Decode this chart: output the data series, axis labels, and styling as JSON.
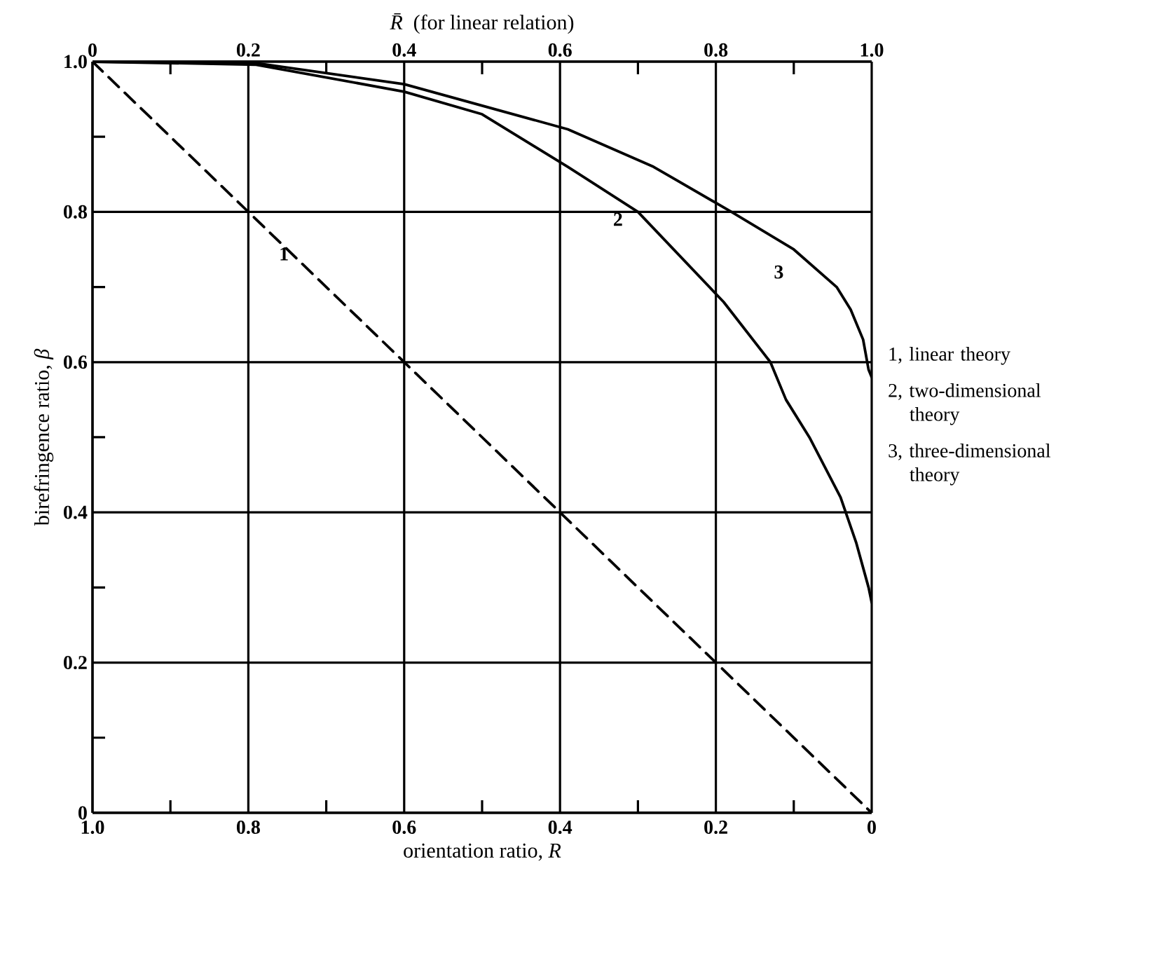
{
  "chart_data": {
    "type": "line",
    "xlabel": "orientation ratio, *R*",
    "ylabel": "birefringence ratio, *β*",
    "x2label": "*R̄* (for linear relation)",
    "xlim": [
      1,
      0
    ],
    "xticks": [
      {
        "value": 1,
        "label": "1.0"
      },
      {
        "value": 0.9,
        "label": null
      },
      0.8,
      {
        "value": 0.7,
        "label": null
      },
      0.6,
      {
        "value": 0.5,
        "label": null
      },
      0.4,
      {
        "value": 0.3,
        "label": null
      },
      0.2,
      {
        "value": 0.1,
        "label": null
      },
      0
    ],
    "x2lim": [
      0,
      1
    ],
    "x2ticks": [
      0,
      {
        "value": 0.1,
        "label": null
      },
      0.2,
      {
        "value": 0.3,
        "label": null
      },
      0.4,
      {
        "value": 0.5,
        "label": null
      },
      0.6,
      {
        "value": 0.7,
        "label": null
      },
      0.8,
      {
        "value": 0.9,
        "label": null
      },
      {
        "value": 1,
        "label": "1.0"
      }
    ],
    "ylim": [
      0,
      1
    ],
    "yticks": [
      0,
      {
        "value": 0.1,
        "label": null
      },
      0.2,
      {
        "value": 0.3,
        "label": null
      },
      0.4,
      {
        "value": 0.5,
        "label": null
      },
      0.6,
      {
        "value": 0.7,
        "label": null
      },
      0.8,
      {
        "value": 0.9,
        "label": null
      },
      {
        "value": 1,
        "label": "1.0"
      }
    ],
    "grid": true,
    "series": [
      {
        "name": "1",
        "color": "#000000",
        "line_style": "dashed",
        "x": [
          1,
          0
        ],
        "values": [
          1,
          0
        ]
      },
      {
        "name": "2",
        "color": "#000000",
        "x": [
          1,
          0.79,
          0.6,
          0.5,
          0.39,
          0.3,
          0.19,
          0.13,
          0.11,
          0.08,
          0.04,
          0.02,
          0.004,
          0
        ],
        "values": [
          1,
          0.996,
          0.96,
          0.93,
          0.86,
          0.8,
          0.68,
          0.6,
          0.55,
          0.5,
          0.42,
          0.36,
          0.3,
          0.28
        ]
      },
      {
        "name": "3",
        "color": "#000000",
        "x": [
          1,
          0.79,
          0.6,
          0.39,
          0.28,
          0.18,
          0.1,
          0.045,
          0.027,
          0.011,
          0.004,
          0
        ],
        "values": [
          1,
          0.998,
          0.97,
          0.91,
          0.86,
          0.8,
          0.75,
          0.7,
          0.67,
          0.63,
          0.59,
          0.58
        ]
      }
    ],
    "annotations": [
      "1, linear theory",
      "2, two-dimensional theory",
      "3, three-dimensional theory"
    ]
  }
}
